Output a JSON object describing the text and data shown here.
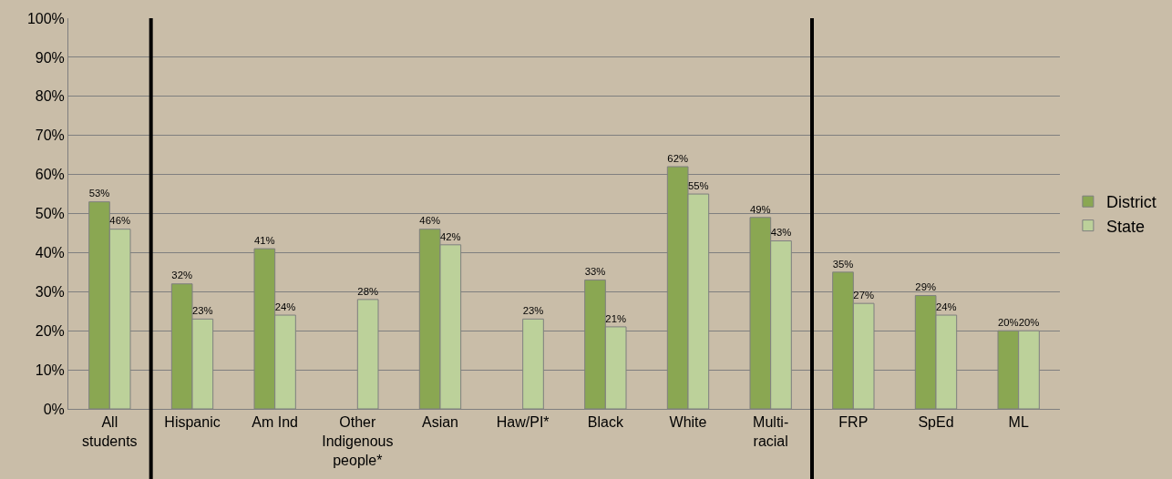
{
  "chart_data": {
    "type": "bar",
    "categories": [
      "All\nstudents",
      "Hispanic",
      "Am Ind",
      "Other\nIndigenous\npeople*",
      "Asian",
      "Haw/PI*",
      "Black",
      "White",
      "Multi-\nracial",
      "FRP",
      "SpEd",
      "ML"
    ],
    "series": [
      {
        "name": "District",
        "color": "#8aa752",
        "values": [
          53,
          32,
          41,
          null,
          46,
          null,
          33,
          62,
          49,
          35,
          29,
          20
        ],
        "value_labels": [
          "53%",
          "32%",
          "41%",
          null,
          "46%",
          null,
          "33%",
          "62%",
          "49%",
          "35%",
          "29%",
          "20%"
        ]
      },
      {
        "name": "State",
        "color": "#bcd19a",
        "values": [
          46,
          23,
          24,
          28,
          42,
          23,
          21,
          55,
          43,
          27,
          24,
          20
        ],
        "value_labels": [
          "46%",
          "23%",
          "24%",
          "28%",
          "42%",
          "23%",
          "21%",
          "55%",
          "43%",
          "27%",
          "24%",
          "20%"
        ]
      }
    ],
    "ylim": [
      0,
      100
    ],
    "yticks": [
      {
        "value": 0,
        "label": "0%"
      },
      {
        "value": 10,
        "label": "10%"
      },
      {
        "value": 20,
        "label": "20%"
      },
      {
        "value": 30,
        "label": "30%"
      },
      {
        "value": 40,
        "label": "40%"
      },
      {
        "value": 50,
        "label": "50%"
      },
      {
        "value": 60,
        "label": "60%"
      },
      {
        "value": 70,
        "label": "70%"
      },
      {
        "value": 80,
        "label": "80%"
      },
      {
        "value": 90,
        "label": "90%"
      },
      {
        "value": 100,
        "label": "100%"
      }
    ],
    "grid": "y",
    "legend": "right"
  }
}
